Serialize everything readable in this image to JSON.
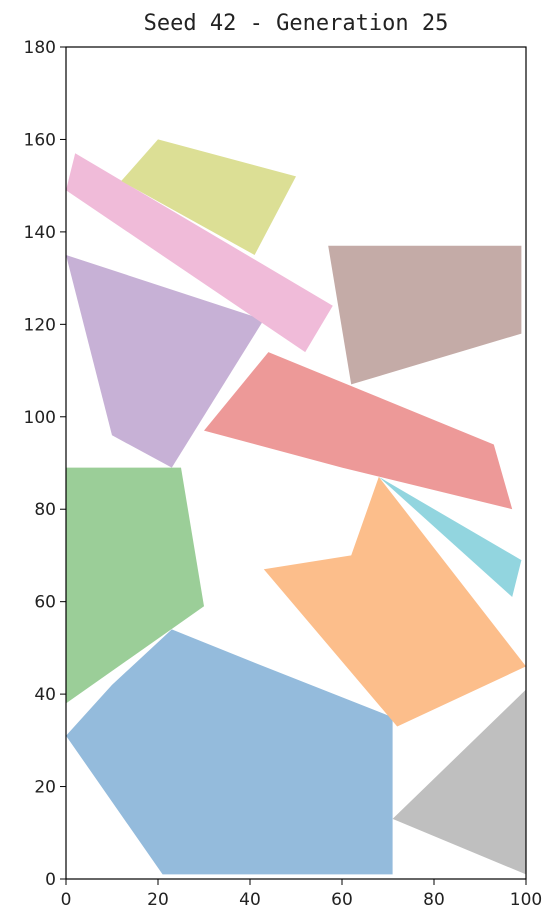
{
  "chart_data": {
    "type": "polygon",
    "title": "Seed 42 - Generation 25",
    "xlabel": "",
    "ylabel": "",
    "xlim": [
      0,
      100
    ],
    "ylim": [
      0,
      180
    ],
    "x_ticks": [
      0,
      20,
      40,
      60,
      80,
      100
    ],
    "y_ticks": [
      0,
      20,
      40,
      60,
      80,
      100,
      120,
      140,
      160,
      180
    ],
    "grid": false,
    "legend": "none",
    "polygons": [
      {
        "color": "#94bbdc",
        "points": [
          [
            0,
            31
          ],
          [
            10,
            42
          ],
          [
            23,
            54
          ],
          [
            43,
            46
          ],
          [
            71,
            35
          ],
          [
            71,
            1
          ],
          [
            21,
            1
          ]
        ]
      },
      {
        "color": "#fcbe8b",
        "points": [
          [
            43,
            67
          ],
          [
            62,
            70
          ],
          [
            68,
            87
          ],
          [
            100,
            46
          ],
          [
            72,
            33
          ]
        ]
      },
      {
        "color": "#9bce98",
        "points": [
          [
            0,
            89
          ],
          [
            25,
            89
          ],
          [
            30,
            59
          ],
          [
            0,
            38
          ]
        ]
      },
      {
        "color": "#ed9998",
        "points": [
          [
            30,
            97
          ],
          [
            44,
            114
          ],
          [
            93,
            94
          ],
          [
            97,
            80
          ],
          [
            60,
            89
          ]
        ]
      },
      {
        "color": "#c7b1d6",
        "points": [
          [
            0,
            135
          ],
          [
            43,
            121
          ],
          [
            23,
            89
          ],
          [
            10,
            96
          ]
        ]
      },
      {
        "color": "#c4aba7",
        "points": [
          [
            57,
            137
          ],
          [
            99,
            137
          ],
          [
            99,
            118
          ],
          [
            62,
            107
          ]
        ]
      },
      {
        "color": "#f0bbd9",
        "points": [
          [
            0,
            149
          ],
          [
            2,
            157
          ],
          [
            58,
            124
          ],
          [
            52,
            114
          ]
        ]
      },
      {
        "color": "#bfbfbf",
        "points": [
          [
            71,
            13
          ],
          [
            100,
            41
          ],
          [
            100,
            1
          ]
        ]
      },
      {
        "color": "#dcdf95",
        "points": [
          [
            12,
            151
          ],
          [
            20,
            160
          ],
          [
            50,
            152
          ],
          [
            41,
            135
          ]
        ]
      },
      {
        "color": "#92d5df",
        "points": [
          [
            68,
            87
          ],
          [
            99,
            69
          ],
          [
            97,
            61
          ]
        ]
      }
    ]
  }
}
